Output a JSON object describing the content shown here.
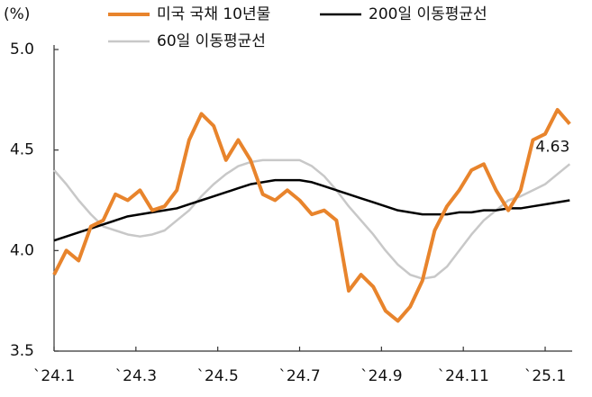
{
  "chart_data": {
    "type": "line",
    "y_label": "(%)",
    "x": [
      0,
      0.3,
      0.6,
      0.9,
      1.2,
      1.5,
      1.8,
      2.1,
      2.4,
      2.7,
      3.0,
      3.3,
      3.6,
      3.9,
      4.2,
      4.5,
      4.8,
      5.1,
      5.4,
      5.7,
      6.0,
      6.3,
      6.6,
      6.9,
      7.2,
      7.5,
      7.8,
      8.1,
      8.4,
      8.7,
      9.0,
      9.3,
      9.6,
      9.9,
      10.2,
      10.5,
      10.8,
      11.1,
      11.4,
      11.7,
      12.0,
      12.3,
      12.6
    ],
    "xlim": [
      0,
      12.66
    ],
    "xticks": [
      {
        "value": 0,
        "label": "`24.1"
      },
      {
        "value": 2,
        "label": "`24.3"
      },
      {
        "value": 4,
        "label": "`24.5"
      },
      {
        "value": 6,
        "label": "`24.7"
      },
      {
        "value": 8,
        "label": "`24.9"
      },
      {
        "value": 10,
        "label": "`24.11"
      },
      {
        "value": 12,
        "label": "`25.1"
      }
    ],
    "ylim": [
      3.5,
      5.0
    ],
    "yticks": [
      3.5,
      {
        "value": 4,
        "label": "4.0"
      },
      4.5,
      {
        "value": 5,
        "label": "5.0"
      }
    ],
    "series": [
      {
        "name": "미국 국채 10년물",
        "color": "#e8842c",
        "width": 4,
        "values": [
          3.88,
          4.0,
          3.95,
          4.12,
          4.15,
          4.28,
          4.25,
          4.3,
          4.2,
          4.22,
          4.3,
          4.55,
          4.68,
          4.62,
          4.45,
          4.55,
          4.45,
          4.28,
          4.25,
          4.3,
          4.25,
          4.18,
          4.2,
          4.15,
          3.8,
          3.88,
          3.82,
          3.7,
          3.65,
          3.72,
          3.85,
          4.1,
          4.22,
          4.3,
          4.4,
          4.43,
          4.3,
          4.2,
          4.3,
          4.55,
          4.58,
          4.7,
          4.63
        ]
      },
      {
        "name": "200일 이동평균선",
        "color": "#000000",
        "width": 2.5,
        "values": [
          4.05,
          4.07,
          4.09,
          4.11,
          4.13,
          4.15,
          4.17,
          4.18,
          4.19,
          4.2,
          4.21,
          4.23,
          4.25,
          4.27,
          4.29,
          4.31,
          4.33,
          4.34,
          4.35,
          4.35,
          4.35,
          4.34,
          4.32,
          4.3,
          4.28,
          4.26,
          4.24,
          4.22,
          4.2,
          4.19,
          4.18,
          4.18,
          4.18,
          4.19,
          4.19,
          4.2,
          4.2,
          4.21,
          4.21,
          4.22,
          4.23,
          4.24,
          4.25
        ]
      },
      {
        "name": "60일 이동평균선",
        "color": "#c8c8c8",
        "width": 2.5,
        "values": [
          4.4,
          4.33,
          4.25,
          4.18,
          4.12,
          4.1,
          4.08,
          4.07,
          4.08,
          4.1,
          4.15,
          4.2,
          4.27,
          4.33,
          4.38,
          4.42,
          4.44,
          4.45,
          4.45,
          4.45,
          4.45,
          4.42,
          4.37,
          4.3,
          4.22,
          4.15,
          4.08,
          4.0,
          3.93,
          3.88,
          3.86,
          3.87,
          3.92,
          4.0,
          4.08,
          4.15,
          4.2,
          4.25,
          4.27,
          4.3,
          4.33,
          4.38,
          4.43
        ]
      }
    ]
  }
}
